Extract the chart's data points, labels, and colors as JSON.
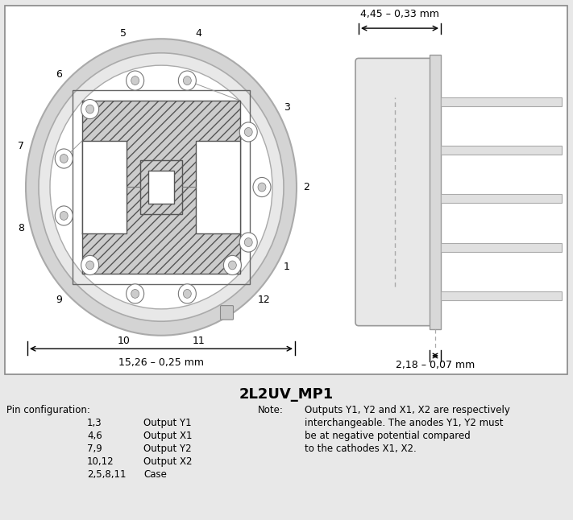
{
  "title": "2L2UV_MP1",
  "dim_left": "15,26 – 0,25 mm",
  "dim_right_top": "4,45 – 0,33 mm",
  "dim_right_bottom": "2,18 – 0,07 mm",
  "pin_config_label": "Pin configuration:",
  "pin_config_rows": [
    [
      "1,3",
      "Output Y1"
    ],
    [
      "4,6",
      "Output X1"
    ],
    [
      "7,9",
      "Output Y2"
    ],
    [
      "10,12",
      "Output X2"
    ],
    [
      "2,5,8,11",
      "Case"
    ]
  ],
  "note_label": "Note:",
  "note_text": "Outputs Y1, Y2 and X1, X2 are respectively\ninterchangeable. The anodes Y1, Y2 must\nbe at negative potential compared\nto the cathodes X1, X2.",
  "pin_angles": {
    "1": -30,
    "2": 0,
    "3": 30,
    "4": 75,
    "5": 105,
    "6": 135,
    "7": 165,
    "8": 195,
    "9": 225,
    "10": 255,
    "11": 285,
    "12": 315
  },
  "wire_angles": {
    "3": 45,
    "7": 135,
    "9": 225,
    "12": 315
  }
}
